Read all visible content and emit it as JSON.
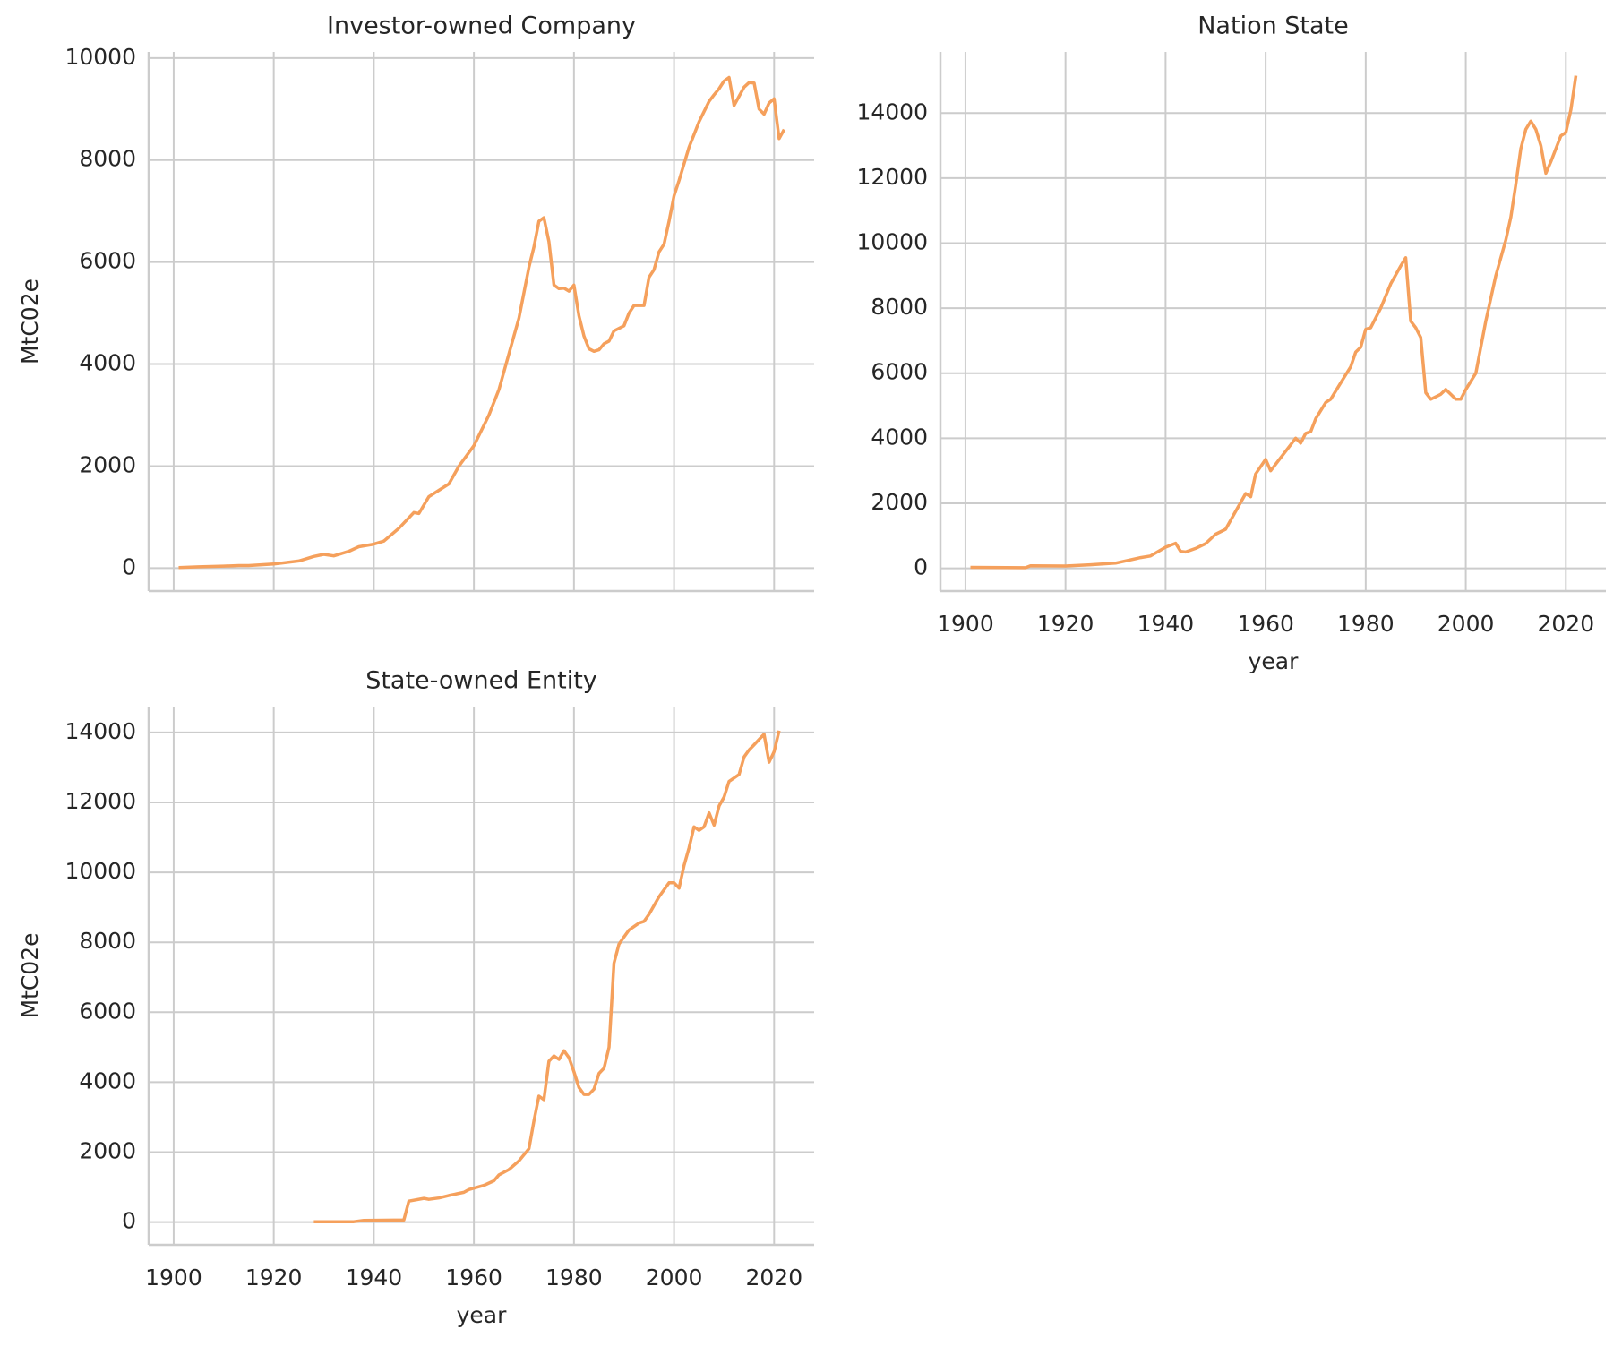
{
  "chart_data": [
    {
      "type": "line",
      "title": "Investor-owned Company",
      "ylabel": "MtC02e",
      "color": "#f5a05c",
      "grid": true,
      "show_xtick_labels": false,
      "xlim": [
        1895,
        2028
      ],
      "ylim": [
        -450,
        10120
      ],
      "xticks": [
        1900,
        1920,
        1940,
        1960,
        1980,
        2000,
        2020
      ],
      "yticks": [
        0,
        2000,
        4000,
        6000,
        8000,
        10000
      ],
      "x": [
        1901,
        1905,
        1910,
        1913,
        1915,
        1920,
        1925,
        1928,
        1930,
        1932,
        1935,
        1937,
        1940,
        1942,
        1945,
        1948,
        1949,
        1951,
        1955,
        1957,
        1960,
        1963,
        1965,
        1967,
        1969,
        1971,
        1972,
        1973,
        1974,
        1975,
        1976,
        1977,
        1978,
        1979,
        1980,
        1981,
        1982,
        1983,
        1984,
        1985,
        1986,
        1987,
        1988,
        1990,
        1991,
        1992,
        1994,
        1995,
        1996,
        1997,
        1998,
        1999,
        2000,
        2001,
        2003,
        2005,
        2007,
        2008,
        2009,
        2010,
        2011,
        2012,
        2013,
        2014,
        2015,
        2016,
        2017,
        2018,
        2019,
        2020,
        2021,
        2022
      ],
      "values": [
        10,
        25,
        40,
        50,
        50,
        80,
        140,
        230,
        270,
        240,
        330,
        420,
        470,
        530,
        780,
        1090,
        1070,
        1400,
        1650,
        2000,
        2400,
        3000,
        3500,
        4200,
        4900,
        5900,
        6300,
        6800,
        6870,
        6400,
        5550,
        5480,
        5490,
        5430,
        5550,
        4950,
        4550,
        4300,
        4250,
        4280,
        4400,
        4450,
        4650,
        4750,
        5000,
        5150,
        5150,
        5700,
        5850,
        6200,
        6350,
        6800,
        7300,
        7600,
        8250,
        8750,
        9150,
        9280,
        9400,
        9550,
        9620,
        9070,
        9250,
        9430,
        9520,
        9510,
        9000,
        8900,
        9120,
        9200,
        8420,
        8600
      ]
    },
    {
      "type": "line",
      "title": "Nation State",
      "xlabel": "year",
      "color": "#f5a05c",
      "grid": true,
      "show_xtick_labels": true,
      "xlim": [
        1895,
        2028
      ],
      "ylim": [
        -700,
        15880
      ],
      "xticks": [
        1900,
        1920,
        1940,
        1960,
        1980,
        2000,
        2020
      ],
      "yticks": [
        0,
        2000,
        4000,
        6000,
        8000,
        10000,
        12000,
        14000
      ],
      "x": [
        1901,
        1912,
        1913,
        1920,
        1925,
        1930,
        1935,
        1937,
        1940,
        1942,
        1943,
        1944,
        1946,
        1948,
        1950,
        1952,
        1954,
        1956,
        1957,
        1958,
        1960,
        1961,
        1963,
        1965,
        1966,
        1967,
        1968,
        1969,
        1970,
        1972,
        1973,
        1975,
        1977,
        1978,
        1979,
        1980,
        1981,
        1983,
        1985,
        1987,
        1988,
        1989,
        1990,
        1991,
        1992,
        1993,
        1995,
        1996,
        1997,
        1998,
        1999,
        2000,
        2002,
        2004,
        2006,
        2008,
        2009,
        2010,
        2011,
        2012,
        2013,
        2014,
        2015,
        2016,
        2017,
        2018,
        2019,
        2020,
        2021,
        2022
      ],
      "values": [
        30,
        20,
        80,
        70,
        110,
        160,
        330,
        380,
        650,
        770,
        520,
        500,
        610,
        760,
        1050,
        1200,
        1750,
        2300,
        2200,
        2900,
        3350,
        3000,
        3400,
        3800,
        4000,
        3850,
        4150,
        4200,
        4600,
        5100,
        5200,
        5700,
        6200,
        6650,
        6800,
        7350,
        7400,
        8000,
        8750,
        9300,
        9550,
        7600,
        7400,
        7100,
        5400,
        5200,
        5350,
        5500,
        5350,
        5200,
        5200,
        5500,
        6000,
        7600,
        9000,
        10100,
        10800,
        11800,
        12900,
        13500,
        13750,
        13500,
        13000,
        12150,
        12500,
        12900,
        13300,
        13400,
        14100,
        15150
      ]
    },
    {
      "type": "line",
      "title": "State-owned Entity",
      "xlabel": "year",
      "ylabel": "MtC02e",
      "color": "#f5a05c",
      "grid": true,
      "show_xtick_labels": true,
      "xlim": [
        1895,
        2028
      ],
      "ylim": [
        -650,
        14740
      ],
      "xticks": [
        1900,
        1920,
        1940,
        1960,
        1980,
        2000,
        2020
      ],
      "yticks": [
        0,
        2000,
        4000,
        6000,
        8000,
        10000,
        12000,
        14000
      ],
      "x": [
        1928,
        1936,
        1938,
        1946,
        1947,
        1950,
        1951,
        1953,
        1955,
        1958,
        1959,
        1962,
        1964,
        1965,
        1967,
        1969,
        1971,
        1972,
        1973,
        1974,
        1975,
        1976,
        1977,
        1978,
        1979,
        1980,
        1981,
        1982,
        1983,
        1984,
        1985,
        1986,
        1987,
        1988,
        1989,
        1990,
        1991,
        1992,
        1993,
        1994,
        1995,
        1997,
        1999,
        2000,
        2001,
        2002,
        2003,
        2004,
        2005,
        2006,
        2007,
        2008,
        2009,
        2010,
        2011,
        2012,
        2013,
        2014,
        2015,
        2016,
        2017,
        2018,
        2019,
        2020,
        2021
      ],
      "values": [
        10,
        10,
        50,
        60,
        600,
        680,
        650,
        690,
        760,
        850,
        930,
        1050,
        1180,
        1350,
        1500,
        1750,
        2100,
        2900,
        3600,
        3500,
        4600,
        4750,
        4650,
        4900,
        4700,
        4300,
        3850,
        3650,
        3650,
        3800,
        4250,
        4400,
        5000,
        7400,
        7950,
        8150,
        8350,
        8450,
        8550,
        8600,
        8800,
        9300,
        9700,
        9700,
        9550,
        10200,
        10700,
        11300,
        11200,
        11300,
        11700,
        11350,
        11900,
        12150,
        12600,
        12700,
        12800,
        13300,
        13500,
        13650,
        13800,
        13950,
        13150,
        13450,
        14050
      ]
    }
  ]
}
